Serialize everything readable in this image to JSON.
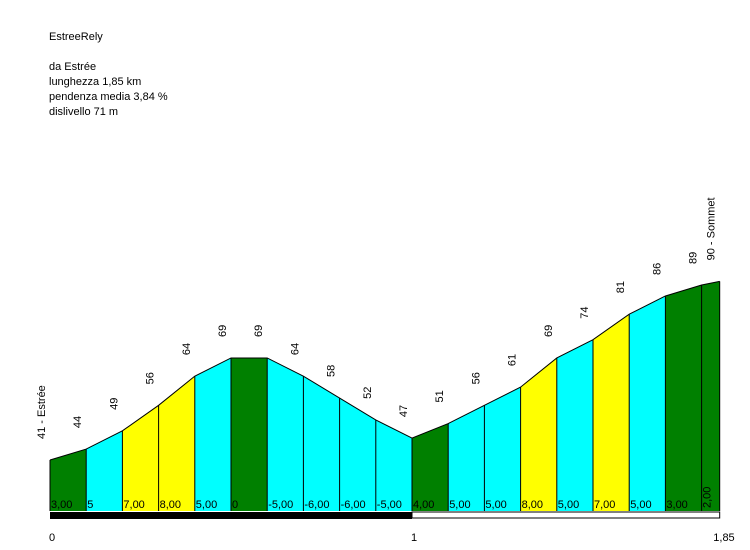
{
  "header": {
    "title": "EstreeRely",
    "origin": "da Estrée",
    "length": "lunghezza 1,85 km",
    "avg_gradient": "pendenza media 3,84 %",
    "elevation_gain": "dislivello 71 m"
  },
  "chart_data": {
    "type": "area",
    "title": "EstreeRely",
    "distance_km": [
      0,
      0.1,
      0.2,
      0.3,
      0.4,
      0.5,
      0.6,
      0.7,
      0.8,
      0.9,
      1.0,
      1.1,
      1.2,
      1.3,
      1.4,
      1.5,
      1.6,
      1.7,
      1.8,
      1.85
    ],
    "altitude_labels": [
      "41 - Estrée",
      "44",
      "49",
      "56",
      "64",
      "69",
      "69",
      "64",
      "58",
      "52",
      "47",
      "51",
      "56",
      "61",
      "69",
      "74",
      "81",
      "86",
      "89",
      "90 - Sommet"
    ],
    "altitudes": [
      41,
      44,
      49,
      56,
      64,
      69,
      69,
      64,
      58,
      52,
      47,
      51,
      56,
      61,
      69,
      74,
      81,
      86,
      89,
      90
    ],
    "segments": [
      {
        "gradient": "3,00",
        "color": "#008000"
      },
      {
        "gradient": "5",
        "color": "#00ffff"
      },
      {
        "gradient": "7,00",
        "color": "#ffff00"
      },
      {
        "gradient": "8,00",
        "color": "#ffff00"
      },
      {
        "gradient": "5,00",
        "color": "#00ffff"
      },
      {
        "gradient": "0",
        "color": "#008000"
      },
      {
        "gradient": "-5,00",
        "color": "#00ffff"
      },
      {
        "gradient": "-6,00",
        "color": "#00ffff"
      },
      {
        "gradient": "-6,00",
        "color": "#00ffff"
      },
      {
        "gradient": "-5,00",
        "color": "#00ffff"
      },
      {
        "gradient": "4,00",
        "color": "#008000"
      },
      {
        "gradient": "5,00",
        "color": "#00ffff"
      },
      {
        "gradient": "5,00",
        "color": "#00ffff"
      },
      {
        "gradient": "8,00",
        "color": "#ffff00"
      },
      {
        "gradient": "5,00",
        "color": "#00ffff"
      },
      {
        "gradient": "7,00",
        "color": "#ffff00"
      },
      {
        "gradient": "5,00",
        "color": "#00ffff"
      },
      {
        "gradient": "3,00",
        "color": "#008000"
      },
      {
        "gradient": "2,00",
        "color": "#008000"
      }
    ],
    "x_ticks": [
      "0",
      "1",
      "1,85"
    ],
    "x_tick_values": [
      0,
      1,
      1.85
    ],
    "xlim": [
      0,
      1.85
    ]
  }
}
